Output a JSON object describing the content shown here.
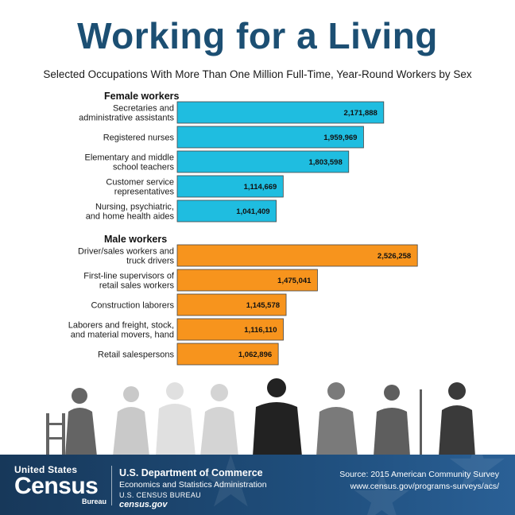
{
  "title": "Working for a Living",
  "subtitle": "Selected Occupations With More Than One Million Full-Time, Year-Round Workers by Sex",
  "chart_data": {
    "type": "bar",
    "orientation": "horizontal",
    "title": "Working for a Living",
    "subtitle": "Selected Occupations With More Than One Million Full-Time, Year-Round Workers by Sex",
    "xlim": [
      0,
      2650000
    ],
    "grid": false,
    "groups": [
      {
        "name": "Female workers",
        "color": "#1fbde0",
        "categories": [
          [
            "Secretaries and",
            "administrative assistants"
          ],
          [
            "Registered nurses"
          ],
          [
            "Elementary and middle",
            "school teachers"
          ],
          [
            "Customer service",
            "representatives"
          ],
          [
            "Nursing, psychiatric,",
            "and home health aides"
          ]
        ],
        "values": [
          2171888,
          1959969,
          1803598,
          1114669,
          1041409
        ],
        "labels": [
          "2,171,888",
          "1,959,969",
          "1,803,598",
          "1,114,669",
          "1,041,409"
        ]
      },
      {
        "name": "Male workers",
        "color": "#f7941d",
        "categories": [
          [
            "Driver/sales workers and",
            "truck drivers"
          ],
          [
            "First-line supervisors of",
            "retail sales workers"
          ],
          [
            "Construction laborers"
          ],
          [
            "Laborers and freight, stock,",
            "and material movers, hand"
          ],
          [
            "Retail salespersons"
          ]
        ],
        "values": [
          2526258,
          1475041,
          1145578,
          1116110,
          1062896
        ],
        "labels": [
          "2,526,258",
          "1,475,041",
          "1,145,578",
          "1,116,110",
          "1,062,896"
        ]
      }
    ]
  },
  "footer": {
    "logo_top": "United States",
    "logo_main": "Census",
    "logo_sub": "Bureau",
    "dept": "U.S. Department of Commerce",
    "admin": "Economics and Statistics Administration",
    "bureau": "U.S. CENSUS BUREAU",
    "site": "census.gov",
    "source": "Source: 2015 American Community Survey",
    "url": "www.census.gov/programs-surveys/acs/",
    "color": "#1c4f73"
  }
}
